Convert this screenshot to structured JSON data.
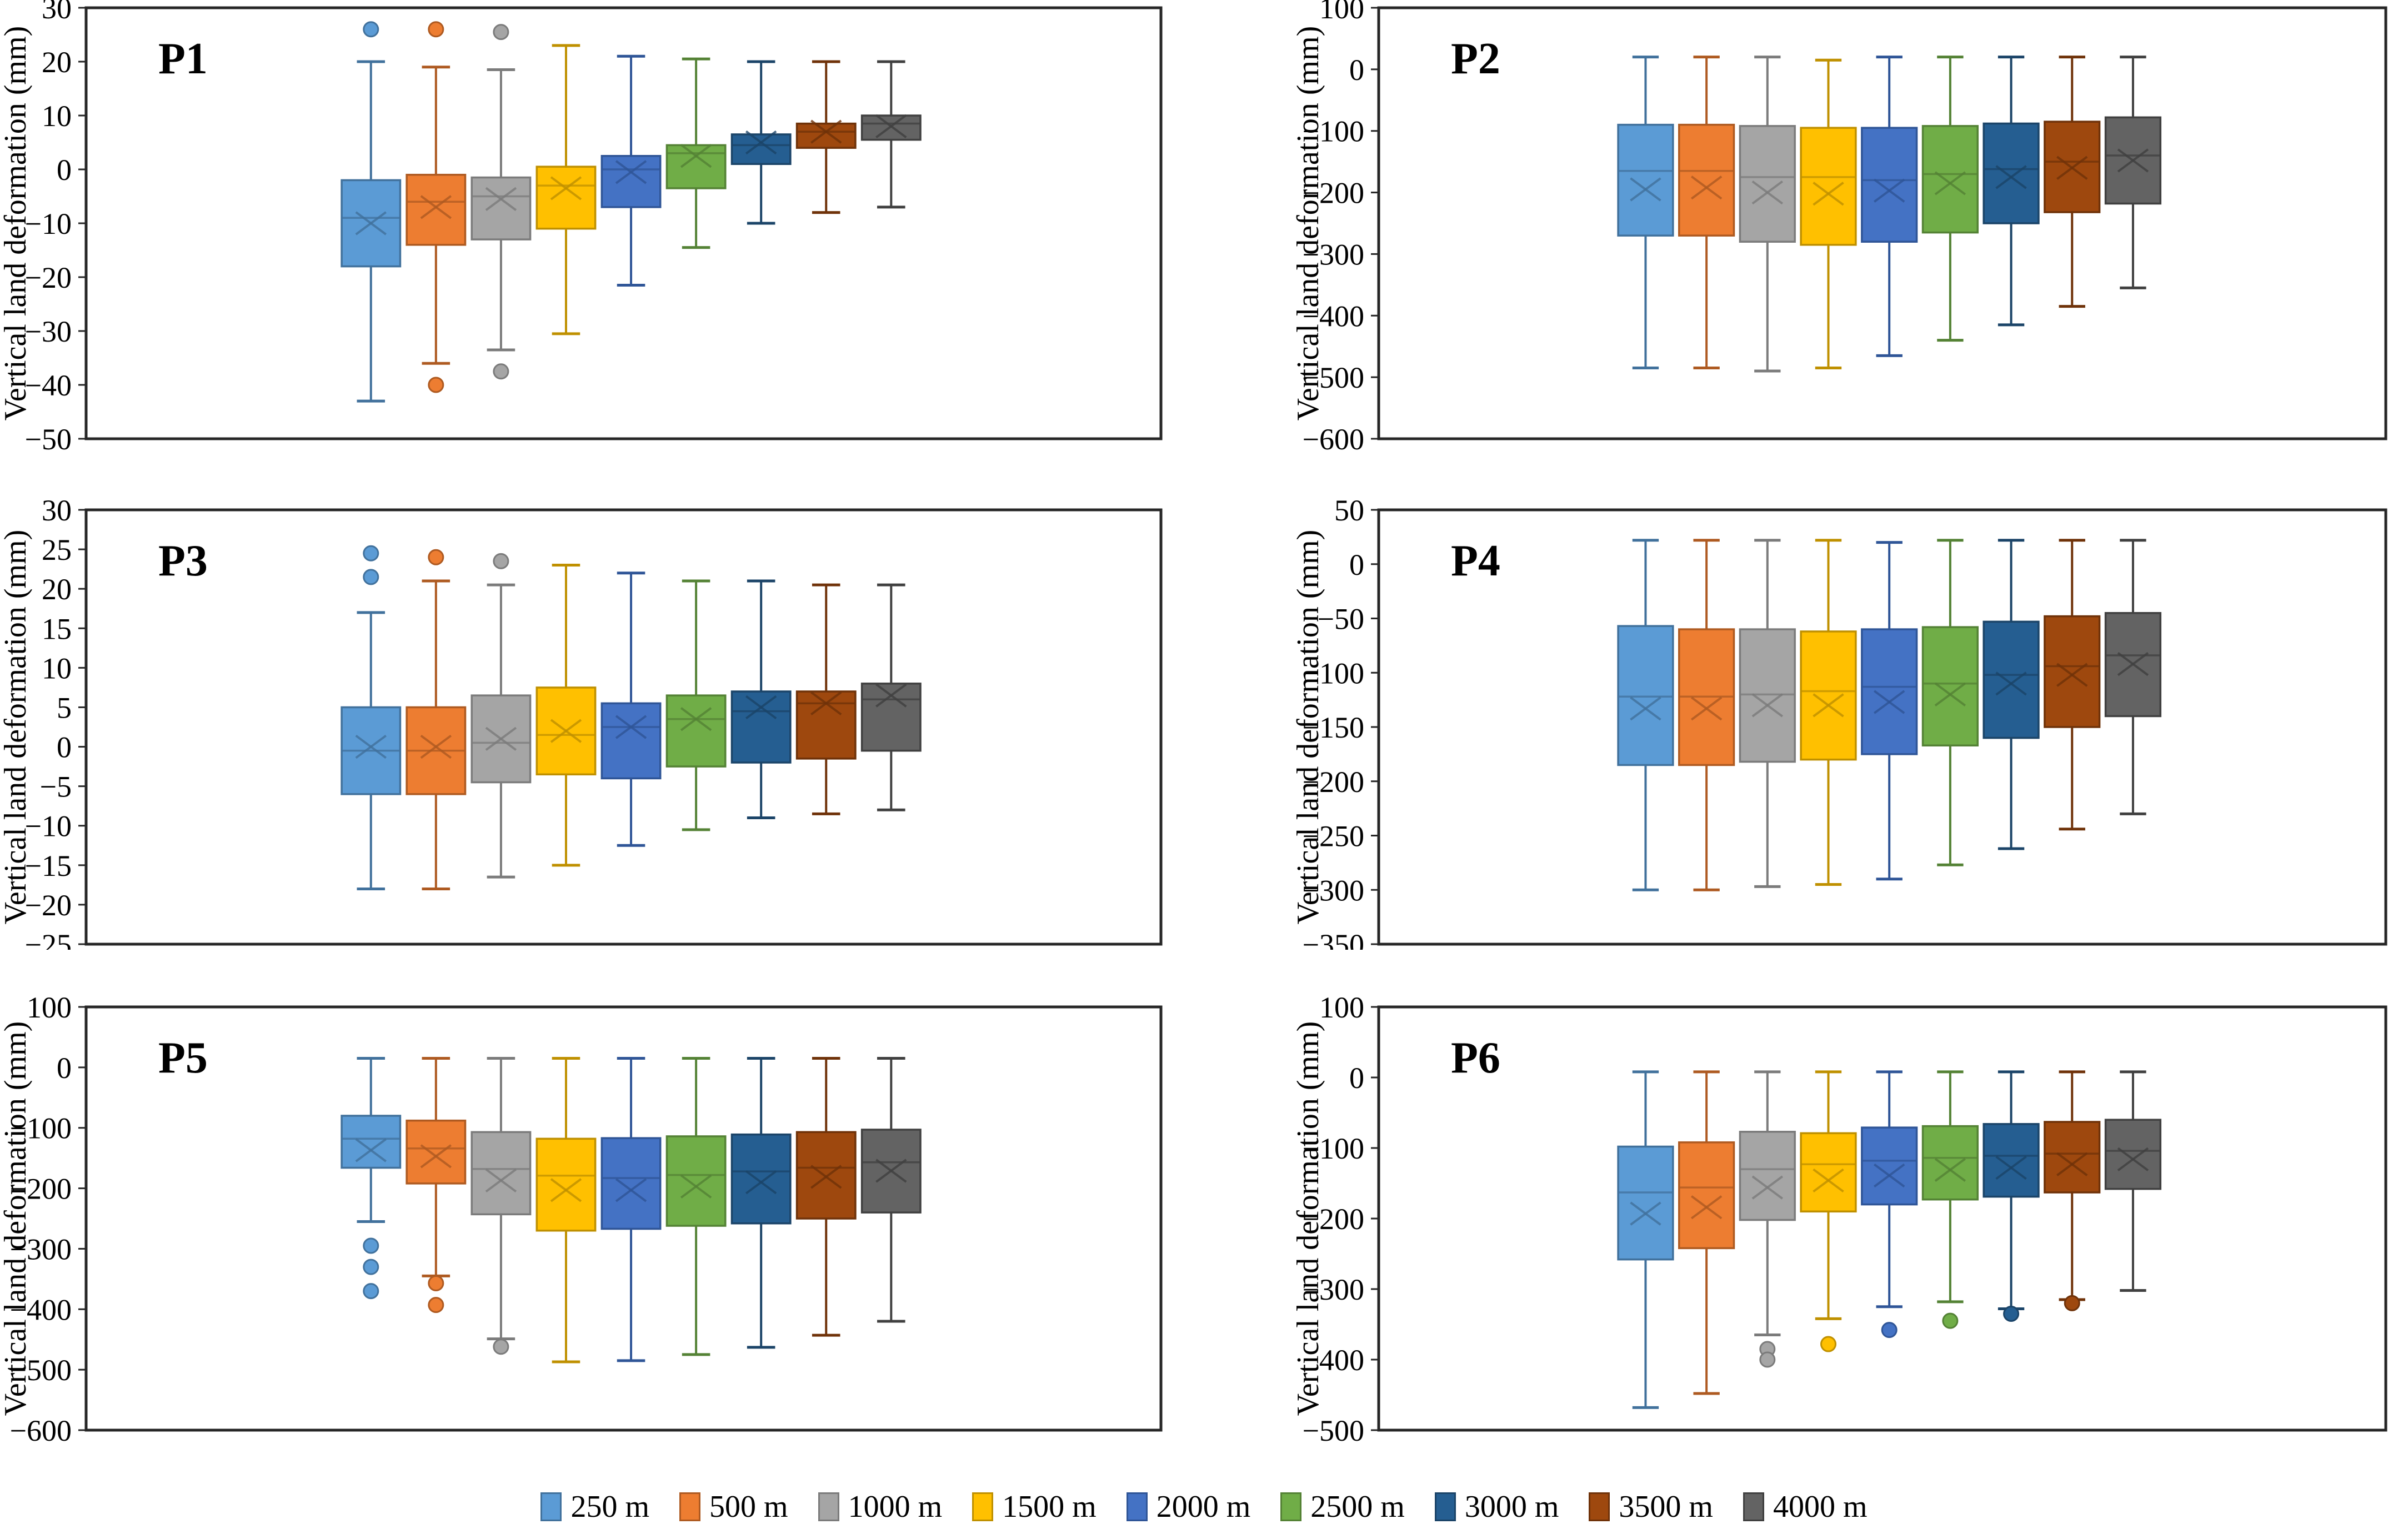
{
  "figure": {
    "ylabel": "Vertical land deformation (mm)",
    "border_color": "#262626",
    "text_color": "#000000"
  },
  "legend": {
    "items": [
      {
        "label": "250 m",
        "fill": "#5B9BD5",
        "stroke": "#41719C"
      },
      {
        "label": "500 m",
        "fill": "#ED7D31",
        "stroke": "#AE5A21"
      },
      {
        "label": "1000 m",
        "fill": "#A5A5A5",
        "stroke": "#7B7B7B"
      },
      {
        "label": "1500 m",
        "fill": "#FFC000",
        "stroke": "#BF9000"
      },
      {
        "label": "2000 m",
        "fill": "#4472C4",
        "stroke": "#2F5597"
      },
      {
        "label": "2500 m",
        "fill": "#70AD47",
        "stroke": "#548235"
      },
      {
        "label": "3000 m",
        "fill": "#255E91",
        "stroke": "#1B4468"
      },
      {
        "label": "3500 m",
        "fill": "#9E480E",
        "stroke": "#6F3209"
      },
      {
        "label": "4000 m",
        "fill": "#636363",
        "stroke": "#404040"
      }
    ]
  },
  "chart_data": [
    {
      "type": "boxplot",
      "title": "P1",
      "ylabel": "Vertical land deformation (mm)",
      "ylim": [
        -50,
        30
      ],
      "ytick_step": 10,
      "grid": false,
      "legend_position": "bottom",
      "categories": [
        "250 m",
        "500 m",
        "1000 m",
        "1500 m",
        "2000 m",
        "2500 m",
        "3000 m",
        "3500 m",
        "4000 m"
      ],
      "series": [
        {
          "name": "250 m",
          "low": -43,
          "q1": -18,
          "median": -9,
          "mean": -10,
          "q3": -2,
          "high": 20,
          "outliers_high": [
            26
          ],
          "outliers_low": []
        },
        {
          "name": "500 m",
          "low": -36,
          "q1": -14,
          "median": -6,
          "mean": -7,
          "q3": -1,
          "high": 19,
          "outliers_high": [
            26
          ],
          "outliers_low": [
            -40
          ]
        },
        {
          "name": "1000 m",
          "low": -33.5,
          "q1": -13,
          "median": -5,
          "mean": -5.5,
          "q3": -1.5,
          "high": 18.5,
          "outliers_high": [
            25.5
          ],
          "outliers_low": [
            -37.5
          ]
        },
        {
          "name": "1500 m",
          "low": -30.5,
          "q1": -11,
          "median": -3,
          "mean": -3.5,
          "q3": 0.5,
          "high": 23,
          "outliers_high": [],
          "outliers_low": []
        },
        {
          "name": "2000 m",
          "low": -21.5,
          "q1": -7,
          "median": 0,
          "mean": -0.5,
          "q3": 2.5,
          "high": 21,
          "outliers_high": [],
          "outliers_low": []
        },
        {
          "name": "2500 m",
          "low": -14.5,
          "q1": -3.5,
          "median": 3,
          "mean": 2.5,
          "q3": 4.5,
          "high": 20.5,
          "outliers_high": [],
          "outliers_low": []
        },
        {
          "name": "3000 m",
          "low": -10,
          "q1": 1,
          "median": 4.5,
          "mean": 5,
          "q3": 6.5,
          "high": 20,
          "outliers_high": [],
          "outliers_low": []
        },
        {
          "name": "3500 m",
          "low": -8,
          "q1": 4,
          "median": 7,
          "mean": 7,
          "q3": 8.5,
          "high": 20,
          "outliers_high": [],
          "outliers_low": []
        },
        {
          "name": "4000 m",
          "low": -7,
          "q1": 5.5,
          "median": 8.5,
          "mean": 8,
          "q3": 10,
          "high": 20,
          "outliers_high": [],
          "outliers_low": []
        }
      ]
    },
    {
      "type": "boxplot",
      "title": "P2",
      "ylabel": "Vertical land deformation (mm)",
      "ylim": [
        -600,
        100
      ],
      "ytick_step": 100,
      "grid": false,
      "legend_position": "bottom",
      "categories": [
        "250 m",
        "500 m",
        "1000 m",
        "1500 m",
        "2000 m",
        "2500 m",
        "3000 m",
        "3500 m",
        "4000 m"
      ],
      "series": [
        {
          "name": "250 m",
          "low": -485,
          "q1": -270,
          "median": -165,
          "mean": -195,
          "q3": -90,
          "high": 20,
          "outliers_high": [],
          "outliers_low": []
        },
        {
          "name": "500 m",
          "low": -485,
          "q1": -270,
          "median": -165,
          "mean": -192,
          "q3": -90,
          "high": 20,
          "outliers_high": [],
          "outliers_low": []
        },
        {
          "name": "1000 m",
          "low": -490,
          "q1": -280,
          "median": -175,
          "mean": -200,
          "q3": -92,
          "high": 20,
          "outliers_high": [],
          "outliers_low": []
        },
        {
          "name": "1500 m",
          "low": -485,
          "q1": -285,
          "median": -175,
          "mean": -202,
          "q3": -95,
          "high": 15,
          "outliers_high": [],
          "outliers_low": []
        },
        {
          "name": "2000 m",
          "low": -465,
          "q1": -280,
          "median": -180,
          "mean": -197,
          "q3": -95,
          "high": 20,
          "outliers_high": [],
          "outliers_low": []
        },
        {
          "name": "2500 m",
          "low": -440,
          "q1": -265,
          "median": -170,
          "mean": -185,
          "q3": -92,
          "high": 20,
          "outliers_high": [],
          "outliers_low": []
        },
        {
          "name": "3000 m",
          "low": -415,
          "q1": -250,
          "median": -162,
          "mean": -175,
          "q3": -88,
          "high": 20,
          "outliers_high": [],
          "outliers_low": []
        },
        {
          "name": "3500 m",
          "low": -385,
          "q1": -232,
          "median": -150,
          "mean": -160,
          "q3": -85,
          "high": 20,
          "outliers_high": [],
          "outliers_low": []
        },
        {
          "name": "4000 m",
          "low": -355,
          "q1": -218,
          "median": -140,
          "mean": -148,
          "q3": -78,
          "high": 20,
          "outliers_high": [],
          "outliers_low": []
        }
      ]
    },
    {
      "type": "boxplot",
      "title": "P3",
      "ylabel": "Vertical land deformation (mm)",
      "ylim": [
        -25,
        30
      ],
      "ytick_step": 5,
      "grid": false,
      "legend_position": "bottom",
      "categories": [
        "250 m",
        "500 m",
        "1000 m",
        "1500 m",
        "2000 m",
        "2500 m",
        "3000 m",
        "3500 m",
        "4000 m"
      ],
      "series": [
        {
          "name": "250 m",
          "low": -18,
          "q1": -6,
          "median": -0.5,
          "mean": 0,
          "q3": 5,
          "high": 17,
          "outliers_high": [
            24.5,
            21.5
          ],
          "outliers_low": []
        },
        {
          "name": "500 m",
          "low": -18,
          "q1": -6,
          "median": -0.5,
          "mean": 0,
          "q3": 5,
          "high": 21,
          "outliers_high": [
            24
          ],
          "outliers_low": []
        },
        {
          "name": "1000 m",
          "low": -16.5,
          "q1": -4.5,
          "median": 0.5,
          "mean": 1,
          "q3": 6.5,
          "high": 20.5,
          "outliers_high": [
            23.5
          ],
          "outliers_low": []
        },
        {
          "name": "1500 m",
          "low": -15,
          "q1": -3.5,
          "median": 1.5,
          "mean": 2,
          "q3": 7.5,
          "high": 23,
          "outliers_high": [],
          "outliers_low": []
        },
        {
          "name": "2000 m",
          "low": -12.5,
          "q1": -4,
          "median": 2.5,
          "mean": 2.5,
          "q3": 5.5,
          "high": 22,
          "outliers_high": [],
          "outliers_low": []
        },
        {
          "name": "2500 m",
          "low": -10.5,
          "q1": -2.5,
          "median": 3.5,
          "mean": 3.5,
          "q3": 6.5,
          "high": 21,
          "outliers_high": [],
          "outliers_low": []
        },
        {
          "name": "3000 m",
          "low": -9,
          "q1": -2,
          "median": 4.5,
          "mean": 5,
          "q3": 7,
          "high": 21,
          "outliers_high": [],
          "outliers_low": []
        },
        {
          "name": "3500 m",
          "low": -8.5,
          "q1": -1.5,
          "median": 5.5,
          "mean": 5.5,
          "q3": 7,
          "high": 20.5,
          "outliers_high": [],
          "outliers_low": []
        },
        {
          "name": "4000 m",
          "low": -8,
          "q1": -0.5,
          "median": 6,
          "mean": 6.5,
          "q3": 8,
          "high": 20.5,
          "outliers_high": [],
          "outliers_low": []
        }
      ]
    },
    {
      "type": "boxplot",
      "title": "P4",
      "ylabel": "Vertical land deformation (mm)",
      "ylim": [
        -350,
        50
      ],
      "ytick_step": 50,
      "grid": false,
      "legend_position": "bottom",
      "categories": [
        "250 m",
        "500 m",
        "1000 m",
        "1500 m",
        "2000 m",
        "2500 m",
        "3000 m",
        "3500 m",
        "4000 m"
      ],
      "series": [
        {
          "name": "250 m",
          "low": -300,
          "q1": -185,
          "median": -122,
          "mean": -133,
          "q3": -57,
          "high": 22,
          "outliers_high": [],
          "outliers_low": []
        },
        {
          "name": "500 m",
          "low": -300,
          "q1": -185,
          "median": -122,
          "mean": -133,
          "q3": -60,
          "high": 22,
          "outliers_high": [],
          "outliers_low": []
        },
        {
          "name": "1000 m",
          "low": -297,
          "q1": -182,
          "median": -120,
          "mean": -130,
          "q3": -60,
          "high": 22,
          "outliers_high": [],
          "outliers_low": []
        },
        {
          "name": "1500 m",
          "low": -295,
          "q1": -180,
          "median": -117,
          "mean": -130,
          "q3": -62,
          "high": 22,
          "outliers_high": [],
          "outliers_low": []
        },
        {
          "name": "2000 m",
          "low": -290,
          "q1": -175,
          "median": -113,
          "mean": -127,
          "q3": -60,
          "high": 20,
          "outliers_high": [],
          "outliers_low": []
        },
        {
          "name": "2500 m",
          "low": -277,
          "q1": -167,
          "median": -110,
          "mean": -120,
          "q3": -58,
          "high": 22,
          "outliers_high": [],
          "outliers_low": []
        },
        {
          "name": "3000 m",
          "low": -262,
          "q1": -160,
          "median": -102,
          "mean": -110,
          "q3": -53,
          "high": 22,
          "outliers_high": [],
          "outliers_low": []
        },
        {
          "name": "3500 m",
          "low": -244,
          "q1": -150,
          "median": -94,
          "mean": -102,
          "q3": -48,
          "high": 22,
          "outliers_high": [],
          "outliers_low": []
        },
        {
          "name": "4000 m",
          "low": -230,
          "q1": -140,
          "median": -84,
          "mean": -92,
          "q3": -45,
          "high": 22,
          "outliers_high": [],
          "outliers_low": []
        }
      ]
    },
    {
      "type": "boxplot",
      "title": "P5",
      "ylabel": "Vertical land deformation (mm)",
      "ylim": [
        -600,
        100
      ],
      "ytick_step": 100,
      "grid": false,
      "legend_position": "bottom",
      "categories": [
        "250 m",
        "500 m",
        "1000 m",
        "1500 m",
        "2000 m",
        "2500 m",
        "3000 m",
        "3500 m",
        "4000 m"
      ],
      "series": [
        {
          "name": "250 m",
          "low": -255,
          "q1": -166,
          "median": -118,
          "mean": -137,
          "q3": -80,
          "high": 15,
          "outliers_high": [],
          "outliers_low": [
            -295,
            -330,
            -370
          ]
        },
        {
          "name": "500 m",
          "low": -345,
          "q1": -192,
          "median": -134,
          "mean": -147,
          "q3": -88,
          "high": 15,
          "outliers_high": [],
          "outliers_low": [
            -357,
            -393
          ]
        },
        {
          "name": "1000 m",
          "low": -449,
          "q1": -243,
          "median": -168,
          "mean": -187,
          "q3": -107,
          "high": 15,
          "outliers_high": [],
          "outliers_low": [
            -462
          ]
        },
        {
          "name": "1500 m",
          "low": -487,
          "q1": -270,
          "median": -179,
          "mean": -203,
          "q3": -118,
          "high": 15,
          "outliers_high": [],
          "outliers_low": []
        },
        {
          "name": "2000 m",
          "low": -485,
          "q1": -267,
          "median": -183,
          "mean": -203,
          "q3": -117,
          "high": 15,
          "outliers_high": [],
          "outliers_low": []
        },
        {
          "name": "2500 m",
          "low": -475,
          "q1": -262,
          "median": -178,
          "mean": -197,
          "q3": -114,
          "high": 15,
          "outliers_high": [],
          "outliers_low": []
        },
        {
          "name": "3000 m",
          "low": -463,
          "q1": -258,
          "median": -172,
          "mean": -190,
          "q3": -111,
          "high": 15,
          "outliers_high": [],
          "outliers_low": []
        },
        {
          "name": "3500 m",
          "low": -443,
          "q1": -250,
          "median": -166,
          "mean": -181,
          "q3": -107,
          "high": 15,
          "outliers_high": [],
          "outliers_low": []
        },
        {
          "name": "4000 m",
          "low": -420,
          "q1": -240,
          "median": -157,
          "mean": -171,
          "q3": -103,
          "high": 15,
          "outliers_high": [],
          "outliers_low": []
        }
      ]
    },
    {
      "type": "boxplot",
      "title": "P6",
      "ylabel": "Vertical land deformation (mm)",
      "ylim": [
        -500,
        100
      ],
      "ytick_step": 100,
      "grid": false,
      "legend_position": "bottom",
      "categories": [
        "250 m",
        "500 m",
        "1000 m",
        "1500 m",
        "2000 m",
        "2500 m",
        "3000 m",
        "3500 m",
        "4000 m"
      ],
      "series": [
        {
          "name": "250 m",
          "low": -468,
          "q1": -258,
          "median": -163,
          "mean": -193,
          "q3": -98,
          "high": 8,
          "outliers_high": [],
          "outliers_low": []
        },
        {
          "name": "500 m",
          "low": -448,
          "q1": -242,
          "median": -156,
          "mean": -184,
          "q3": -92,
          "high": 8,
          "outliers_high": [],
          "outliers_low": []
        },
        {
          "name": "1000 m",
          "low": -365,
          "q1": -202,
          "median": -130,
          "mean": -156,
          "q3": -77,
          "high": 8,
          "outliers_high": [],
          "outliers_low": [
            -385,
            -400
          ]
        },
        {
          "name": "1500 m",
          "low": -342,
          "q1": -190,
          "median": -123,
          "mean": -146,
          "q3": -79,
          "high": 8,
          "outliers_high": [],
          "outliers_low": [
            -378
          ]
        },
        {
          "name": "2000 m",
          "low": -325,
          "q1": -180,
          "median": -118,
          "mean": -139,
          "q3": -71,
          "high": 8,
          "outliers_high": [],
          "outliers_low": [
            -358
          ]
        },
        {
          "name": "2500 m",
          "low": -318,
          "q1": -173,
          "median": -114,
          "mean": -131,
          "q3": -69,
          "high": 8,
          "outliers_high": [],
          "outliers_low": [
            -345
          ]
        },
        {
          "name": "3000 m",
          "low": -328,
          "q1": -169,
          "median": -111,
          "mean": -128,
          "q3": -66,
          "high": 8,
          "outliers_high": [],
          "outliers_low": [
            -335
          ]
        },
        {
          "name": "3500 m",
          "low": -315,
          "q1": -163,
          "median": -108,
          "mean": -123,
          "q3": -63,
          "high": 8,
          "outliers_high": [],
          "outliers_low": [
            -320
          ]
        },
        {
          "name": "4000 m",
          "low": -302,
          "q1": -158,
          "median": -104,
          "mean": -116,
          "q3": -60,
          "high": 8,
          "outliers_high": [],
          "outliers_low": []
        }
      ]
    }
  ]
}
